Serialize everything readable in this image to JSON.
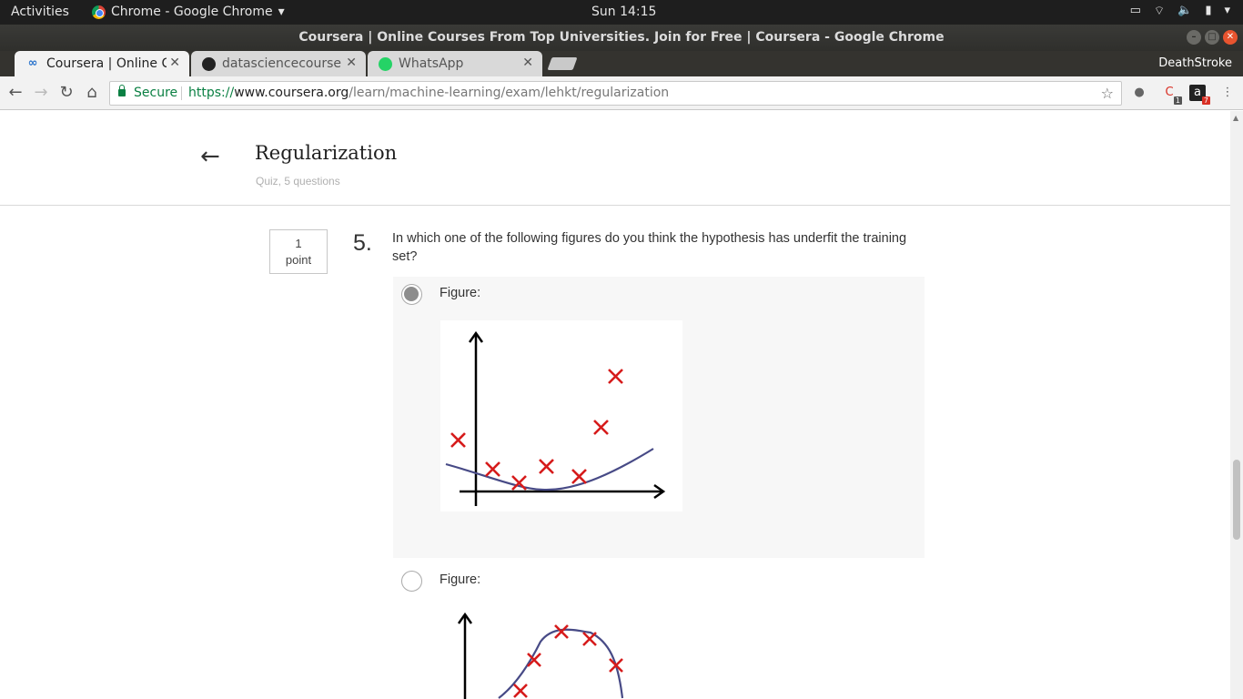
{
  "system": {
    "activities": "Activities",
    "app_name": "Chrome - Google Chrome",
    "clock": "Sun 14:15"
  },
  "window": {
    "title": "Coursera | Online Courses From Top Universities. Join for Free | Coursera - Google Chrome"
  },
  "tabs": [
    {
      "label": "Coursera | Online C",
      "active": true
    },
    {
      "label": "datasciencecourser",
      "active": false
    },
    {
      "label": "WhatsApp",
      "active": false
    }
  ],
  "profile": "DeathStroke",
  "omnibox": {
    "secure_label": "Secure",
    "scheme": "https://",
    "host": "www.coursera.org",
    "path": "/learn/machine-learning/exam/lehkt/regularization"
  },
  "extensions": [
    {
      "icon": "lightbulb-icon"
    },
    {
      "icon": "chrome-ext-icon",
      "badge": "1"
    },
    {
      "icon": "amazon-icon",
      "badge": "7"
    }
  ],
  "quiz": {
    "title": "Regularization",
    "subtitle": "Quiz, 5 questions"
  },
  "question": {
    "points_value": "1",
    "points_label": "point",
    "number": "5.",
    "text": "In which one of the following figures do you think the hypothesis has underfit the training set?"
  },
  "options": [
    {
      "label": "Figure:",
      "selected": true
    },
    {
      "label": "Figure:",
      "selected": false
    }
  ],
  "colors": {
    "marker": "#d61b1b",
    "curve": "#474a86",
    "secure": "#0b8043"
  }
}
